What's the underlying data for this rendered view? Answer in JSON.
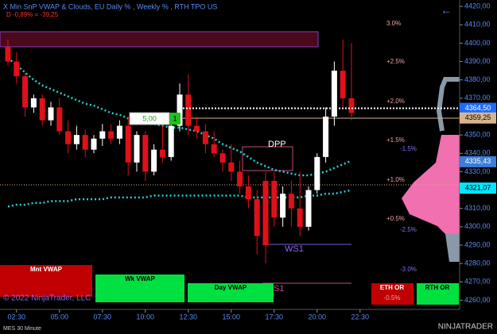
{
  "chart_data": {
    "type": "candlestick",
    "title": "X Min SnP VWAP & Clouds, EU Daily % , Weekly % , RTH TPO US",
    "subtitle": "D -0,89% = -39,25",
    "categories": [
      null,
      "02:30",
      null,
      null,
      null,
      null,
      "05:00",
      null,
      null,
      null,
      null,
      "07:30",
      null,
      null,
      null,
      null,
      "10:00",
      null,
      null,
      null,
      null,
      "12:30",
      null,
      null,
      null,
      null,
      "15:00",
      null,
      null,
      null,
      null,
      "17:30",
      null,
      null,
      null,
      null,
      "20:00",
      null,
      null,
      null,
      null,
      "22:30"
    ],
    "open": [
      4398,
      4390,
      4382,
      4365,
      4370,
      4358,
      4365,
      4352,
      4345,
      4350,
      4342,
      4348,
      4352,
      4348,
      4355,
      4335,
      4350,
      4330,
      4342,
      4338,
      4355,
      4372,
      4355,
      4352,
      4345,
      4340,
      4335,
      4330,
      4322,
      4315,
      4325,
      4325,
      4305,
      4318,
      4310,
      4300,
      4320,
      4338,
      4360,
      4385,
      4370,
      null
    ],
    "high": [
      4402,
      4395,
      4384,
      4372,
      4372,
      4368,
      4370,
      4358,
      4355,
      4353,
      4350,
      4356,
      4356,
      4358,
      4360,
      4352,
      4352,
      4345,
      4355,
      4360,
      4378,
      4383,
      4360,
      4356,
      4352,
      4342,
      4345,
      4336,
      4328,
      4320,
      4330,
      4330,
      4322,
      4325,
      4330,
      4322,
      4340,
      4365,
      4390,
      4402,
      4400,
      null
    ],
    "low": [
      4388,
      4378,
      4360,
      4362,
      4355,
      4355,
      4350,
      4340,
      4342,
      4338,
      4340,
      4344,
      4345,
      4345,
      4328,
      4330,
      4325,
      4328,
      4335,
      4336,
      4352,
      4350,
      4348,
      4340,
      4338,
      4330,
      4325,
      4318,
      4310,
      4285,
      4280,
      4300,
      4300,
      4300,
      4295,
      4298,
      4318,
      4335,
      4355,
      4365,
      4358,
      null
    ],
    "close": [
      4390,
      4382,
      4365,
      4370,
      4358,
      4365,
      4352,
      4345,
      4350,
      4342,
      4348,
      4352,
      4348,
      4355,
      4335,
      4350,
      4330,
      4342,
      4338,
      4355,
      4372,
      4355,
      4352,
      4345,
      4340,
      4335,
      4330,
      4322,
      4315,
      4295,
      4290,
      4305,
      4318,
      4310,
      4300,
      4320,
      4338,
      4360,
      4385,
      4370,
      4362,
      null
    ],
    "up_color": "#ffffff",
    "down_color": "#e0101a",
    "lines": [
      {
        "color": "#22d3d3",
        "values": [
          4392,
          4388,
          4384,
          4380,
          4377,
          4375,
          4373,
          4371,
          4369,
          4367,
          4366,
          4364,
          4362,
          4361,
          4359,
          4358,
          4357,
          4356,
          4355,
          4354,
          4354,
          4353,
          4352,
          4350,
          4348,
          4345,
          4343,
          4341,
          4338,
          4335,
          4333,
          4331,
          4330,
          4329,
          4328,
          4328,
          4329,
          4330,
          4332,
          4334,
          4336,
          null
        ]
      },
      {
        "color": "#22d3d3",
        "values": [
          4311,
          4312,
          4312,
          4313,
          4313,
          4314,
          4314,
          4314,
          4315,
          4315,
          4315,
          4315,
          4316,
          4316,
          4316,
          4316,
          4316,
          4317,
          4317,
          4317,
          4317,
          4317,
          4317,
          4317,
          4317,
          4317,
          4317,
          4317,
          4316,
          4316,
          4316,
          4316,
          4316,
          4316,
          4316,
          4317,
          4317,
          4318,
          4318,
          4319,
          4320,
          null
        ]
      }
    ],
    "ylim": [
      4255,
      4423.5
    ],
    "yticks": [
      {
        "value": 4260,
        "label": "4260,00"
      },
      {
        "value": 4270,
        "label": "4270,00"
      },
      {
        "value": 4280,
        "label": "4280,00"
      },
      {
        "value": 4290,
        "label": "4290,00"
      },
      {
        "value": 4300,
        "label": "4300,00"
      },
      {
        "value": 4310,
        "label": "4310,00"
      },
      {
        "value": 4320,
        "label": "4320,00"
      },
      {
        "value": 4330,
        "label": "4330,00"
      },
      {
        "value": 4340,
        "label": "4340,00"
      },
      {
        "value": 4350,
        "label": "4350,00"
      },
      {
        "value": 4360,
        "label": "4360,00"
      },
      {
        "value": 4370,
        "label": "4370,00"
      },
      {
        "value": 4380,
        "label": "4380,00"
      },
      {
        "value": 4390,
        "label": "4390,00"
      },
      {
        "value": 4400,
        "label": "4400,00"
      },
      {
        "value": 4410,
        "label": "4410,00"
      },
      {
        "value": 4420,
        "label": "4420,00"
      }
    ],
    "price_tags": [
      {
        "value": 4364.5,
        "label": "4364,50",
        "color": "#1e6bff",
        "text_color": "#ffffff"
      },
      {
        "value": 4359.25,
        "label": "4359,25",
        "color": "#d8b48c",
        "text_color": "#000000"
      },
      {
        "value": 4335.43,
        "label": "4335,43",
        "color": "#3b7dd8",
        "text_color": "#ffffff"
      },
      {
        "value": 4321.07,
        "label": "4321,07",
        "color": "#00e5ff",
        "text_color": "#000000"
      }
    ],
    "levels": [
      "3.0%",
      "+2.5%",
      "+2.0%",
      "+1.5%",
      "-1.5%",
      "+1.0%",
      "+0.5%",
      "-2.5%",
      "-3.0%",
      "DPP",
      "WS1",
      "S1"
    ],
    "buttons": [
      "Mnt VWAP",
      "Wk VWAP",
      "Day VWAP",
      "ETH OR",
      "-0.5%",
      "RTH OR"
    ],
    "order_qty": "5,00",
    "order_count": "1",
    "copyright": "© 2022 NinjaTrader, LLC",
    "instrument": "MES 30 Minute",
    "brand": "NINJATRADER"
  }
}
